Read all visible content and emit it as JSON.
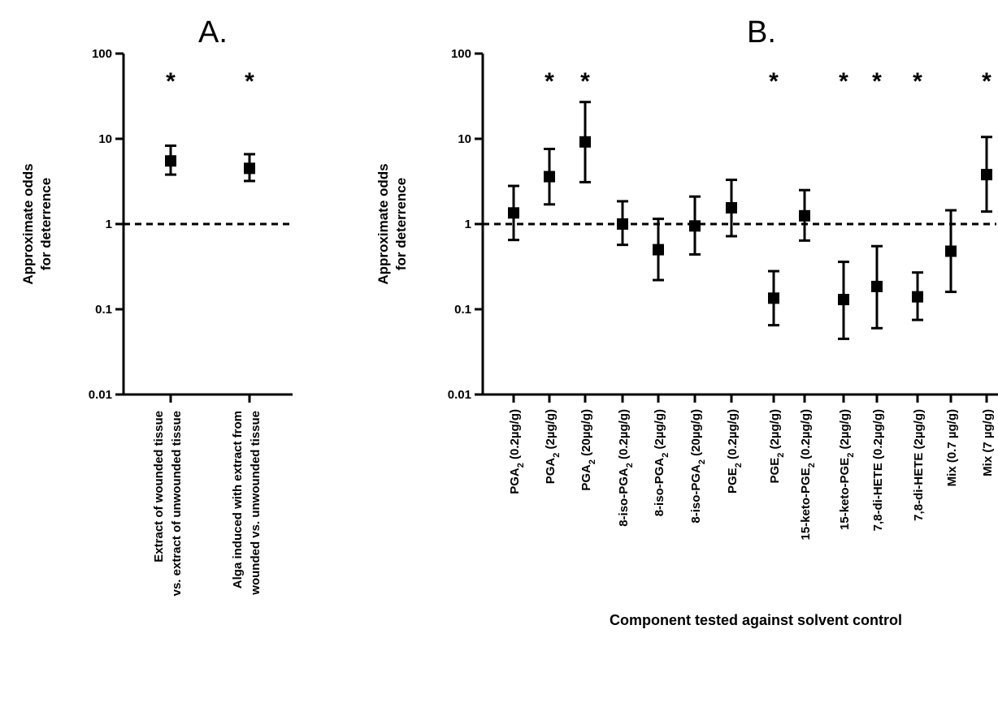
{
  "chart_data": [
    {
      "type": "scatter",
      "panel": "A.",
      "ylabel_line1": "Approximate odds",
      "ylabel_line2": "for deterrence",
      "xlabel": "",
      "yscale": "log",
      "ylim": [
        0.01,
        100
      ],
      "ytick_labels": [
        "0.01",
        "0.1",
        "1",
        "10",
        "100"
      ],
      "reference_line": 1,
      "categories": [
        {
          "line1": "Extract of wounded tissue",
          "line2": "vs. extract of unwounded tissue"
        },
        {
          "line1": "Alga induced with extract from",
          "line2": "wounded vs. unwounded tissue"
        }
      ],
      "values": [
        5.5,
        4.5
      ],
      "error_low": [
        3.8,
        3.2
      ],
      "error_high": [
        8.3,
        6.6
      ],
      "significance": [
        "*",
        "*"
      ]
    },
    {
      "type": "scatter",
      "panel": "B.",
      "ylabel_line1": "Approximate odds",
      "ylabel_line2": "for deterrence",
      "xlabel": "Component tested against solvent control",
      "yscale": "log",
      "ylim": [
        0.01,
        100
      ],
      "ytick_labels": [
        "0.01",
        "0.1",
        "1",
        "10",
        "100"
      ],
      "reference_line": 1,
      "categories": [
        {
          "pre": "PGA",
          "sub": "2",
          "post": " (0.2µg/g)"
        },
        {
          "pre": "PGA",
          "sub": "2",
          "post": " (2µg/g)"
        },
        {
          "pre": "PGA",
          "sub": "2",
          "post": " (20µg/g)"
        },
        {
          "pre": "8-iso-PGA",
          "sub": "2",
          "post": " (0.2µg/g)"
        },
        {
          "pre": "8-iso-PGA",
          "sub": "2",
          "post": " (2µg/g)"
        },
        {
          "pre": "8-iso-PGA",
          "sub": "2",
          "post": " (20µg/g)"
        },
        {
          "pre": "PGE",
          "sub": "2",
          "post": " (0.2µg/g)"
        },
        {
          "pre": "PGE",
          "sub": "2",
          "post": " (2µg/g)"
        },
        {
          "pre": "15-keto-PGE",
          "sub": "2",
          "post": " (0.2µg/g)"
        },
        {
          "pre": "15-keto-PGE",
          "sub": "2",
          "post": " (2µg/g)"
        },
        {
          "pre": "7,8-di-HETE (0.2µg/g)",
          "sub": "",
          "post": ""
        },
        {
          "pre": "7,8-di-HETE (2µg/g)",
          "sub": "",
          "post": ""
        },
        {
          "pre": "Mix (0.7 µg/g)",
          "sub": "",
          "post": ""
        },
        {
          "pre": "Mix (7 µg/g)",
          "sub": "",
          "post": ""
        }
      ],
      "values": [
        1.35,
        3.6,
        9.2,
        1.0,
        0.5,
        0.95,
        1.55,
        0.135,
        1.25,
        0.13,
        0.185,
        0.14,
        0.48,
        3.8
      ],
      "error_low": [
        0.65,
        1.7,
        3.1,
        0.57,
        0.22,
        0.44,
        0.72,
        0.065,
        0.64,
        0.045,
        0.06,
        0.075,
        0.16,
        1.4
      ],
      "error_high": [
        2.8,
        7.6,
        27,
        1.85,
        1.15,
        2.1,
        3.3,
        0.28,
        2.5,
        0.36,
        0.55,
        0.27,
        1.45,
        10.5
      ],
      "significance": [
        "",
        "*",
        "*",
        "",
        "",
        "",
        "",
        "*",
        "",
        "*",
        "*",
        "*",
        "",
        "*"
      ]
    }
  ]
}
